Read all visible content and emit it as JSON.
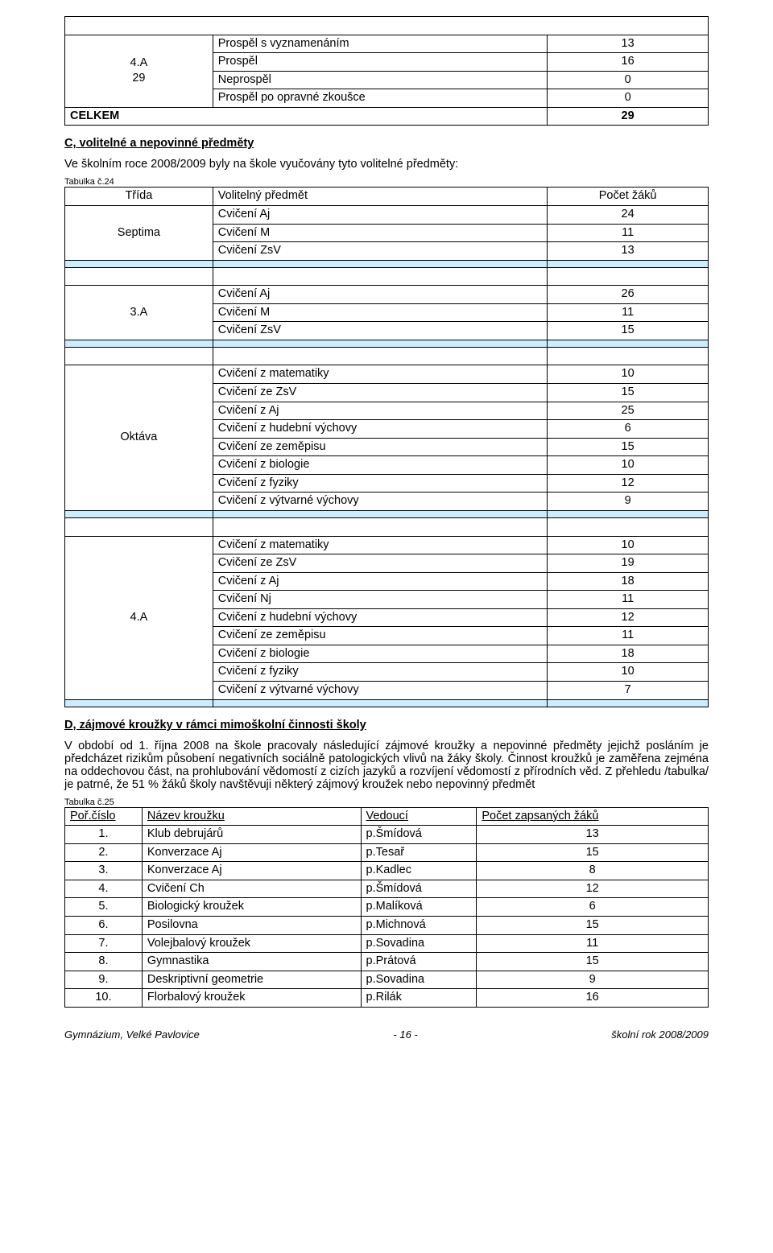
{
  "colors": {
    "highlight_row_bg": "#ccecff",
    "border": "#000000",
    "text": "#000000",
    "background": "#ffffff"
  },
  "font": {
    "family": "Verdana",
    "base_size_pt": 11,
    "small_size_pt": 8
  },
  "top_table": {
    "col_widths_percent": [
      23,
      52,
      25
    ],
    "class_label": "4.A\n29",
    "rows": [
      {
        "label": "Prospěl s vyznamenáním",
        "value": "13"
      },
      {
        "label": "Prospěl",
        "value": "16"
      },
      {
        "label": "Neprospěl",
        "value": "0"
      },
      {
        "label": "Prospěl po opravné zkoušce",
        "value": "0"
      }
    ],
    "celkem_label": "CELKEM",
    "celkem_value": "29"
  },
  "section_c_title": "C, volitelné a nepovinné předměty",
  "section_c_intro": "Ve školním roce 2008/2009 byly na škole vyučovány tyto volitelné předměty:",
  "table24_label": "Tabulka č.24",
  "table24": {
    "col_widths_percent": [
      23,
      52,
      25
    ],
    "header": {
      "c0": "Třída",
      "c1": "Volitelný předmět",
      "c2": "Počet žáků"
    },
    "groups": [
      {
        "class": "Septima",
        "rows": [
          {
            "subject": "Cvičení Aj",
            "count": "24"
          },
          {
            "subject": "Cvičení M",
            "count": "11"
          },
          {
            "subject": "Cvičení ZsV",
            "count": "13"
          }
        ]
      },
      {
        "class": "3.A",
        "rows": [
          {
            "subject": "Cvičení Aj",
            "count": "26"
          },
          {
            "subject": "Cvičení M",
            "count": "11"
          },
          {
            "subject": "Cvičení ZsV",
            "count": "15"
          }
        ]
      },
      {
        "class": "Oktáva",
        "rows": [
          {
            "subject": "Cvičení z matematiky",
            "count": "10"
          },
          {
            "subject": "Cvičení ze ZsV",
            "count": "15"
          },
          {
            "subject": "Cvičení z Aj",
            "count": "25"
          },
          {
            "subject": "Cvičení z hudební výchovy",
            "count": "6"
          },
          {
            "subject": "Cvičení ze zeměpisu",
            "count": "15"
          },
          {
            "subject": "Cvičení z biologie",
            "count": "10"
          },
          {
            "subject": "Cvičení z fyziky",
            "count": "12"
          },
          {
            "subject": "Cvičení z výtvarné výchovy",
            "count": "9"
          }
        ]
      },
      {
        "class": "4.A",
        "rows": [
          {
            "subject": "Cvičení z matematiky",
            "count": "10"
          },
          {
            "subject": "Cvičení ze ZsV",
            "count": "19"
          },
          {
            "subject": "Cvičení z Aj",
            "count": "18"
          },
          {
            "subject": "Cvičení Nj",
            "count": "11"
          },
          {
            "subject": "Cvičení z hudební výchovy",
            "count": "12"
          },
          {
            "subject": "Cvičení ze zeměpisu",
            "count": "11"
          },
          {
            "subject": "Cvičení z biologie",
            "count": "18"
          },
          {
            "subject": "Cvičení z fyziky",
            "count": "10"
          },
          {
            "subject": "Cvičení z výtvarné výchovy",
            "count": "7"
          }
        ]
      }
    ]
  },
  "section_d_title": "D, zájmové kroužky v rámci mimoškolní činnosti školy",
  "section_d_para": "V období od 1. října 2008 na škole pracovaly následující zájmové kroužky a nepovinné předměty jejichž posláním je předcházet rizikům působení negativních sociálně patologických vlivů na žáky školy. Činnost kroužků je zaměřena zejména na oddechovou část, na prohlubování vědomostí z cizích jazyků a rozvíjení vědomostí z přírodních věd. Z přehledu /tabulka/  je patrné, že 51  % žáků školy navštěvuji některý zájmový kroužek nebo nepovinný předmět",
  "table25_label": "Tabulka č.25",
  "table25": {
    "col_widths_percent": [
      12,
      34,
      18,
      36
    ],
    "header": {
      "c0": "Poř.číslo",
      "c1": "Název kroužku",
      "c2": "Vedoucí",
      "c3": "Počet zapsaných žáků"
    },
    "rows": [
      {
        "n": "1.",
        "name": "Klub debrujárů",
        "leader": "p.Šmídová",
        "count": "13"
      },
      {
        "n": "2.",
        "name": "Konverzace Aj",
        "leader": "p.Tesař",
        "count": "15"
      },
      {
        "n": "3.",
        "name": "Konverzace Aj",
        "leader": "p.Kadlec",
        "count": "8"
      },
      {
        "n": "4.",
        "name": "Cvičení Ch",
        "leader": "p.Šmídová",
        "count": "12"
      },
      {
        "n": "5.",
        "name": "Biologický kroužek",
        "leader": "p.Malíková",
        "count": "6"
      },
      {
        "n": "6.",
        "name": "Posilovna",
        "leader": "p.Michnová",
        "count": "15"
      },
      {
        "n": "7.",
        "name": "Volejbalový kroužek",
        "leader": "p.Sovadina",
        "count": "11"
      },
      {
        "n": "8.",
        "name": "Gymnastika",
        "leader": "p.Prátová",
        "count": "15"
      },
      {
        "n": "9.",
        "name": "Deskriptivní geometrie",
        "leader": "p.Sovadina",
        "count": "9"
      },
      {
        "n": "10.",
        "name": "Florbalový kroužek",
        "leader": "p.Rilák",
        "count": "16"
      }
    ]
  },
  "footer": {
    "left": "Gymnázium, Velké Pavlovice",
    "center": "- 16 -",
    "right": "školní rok 2008/2009"
  }
}
